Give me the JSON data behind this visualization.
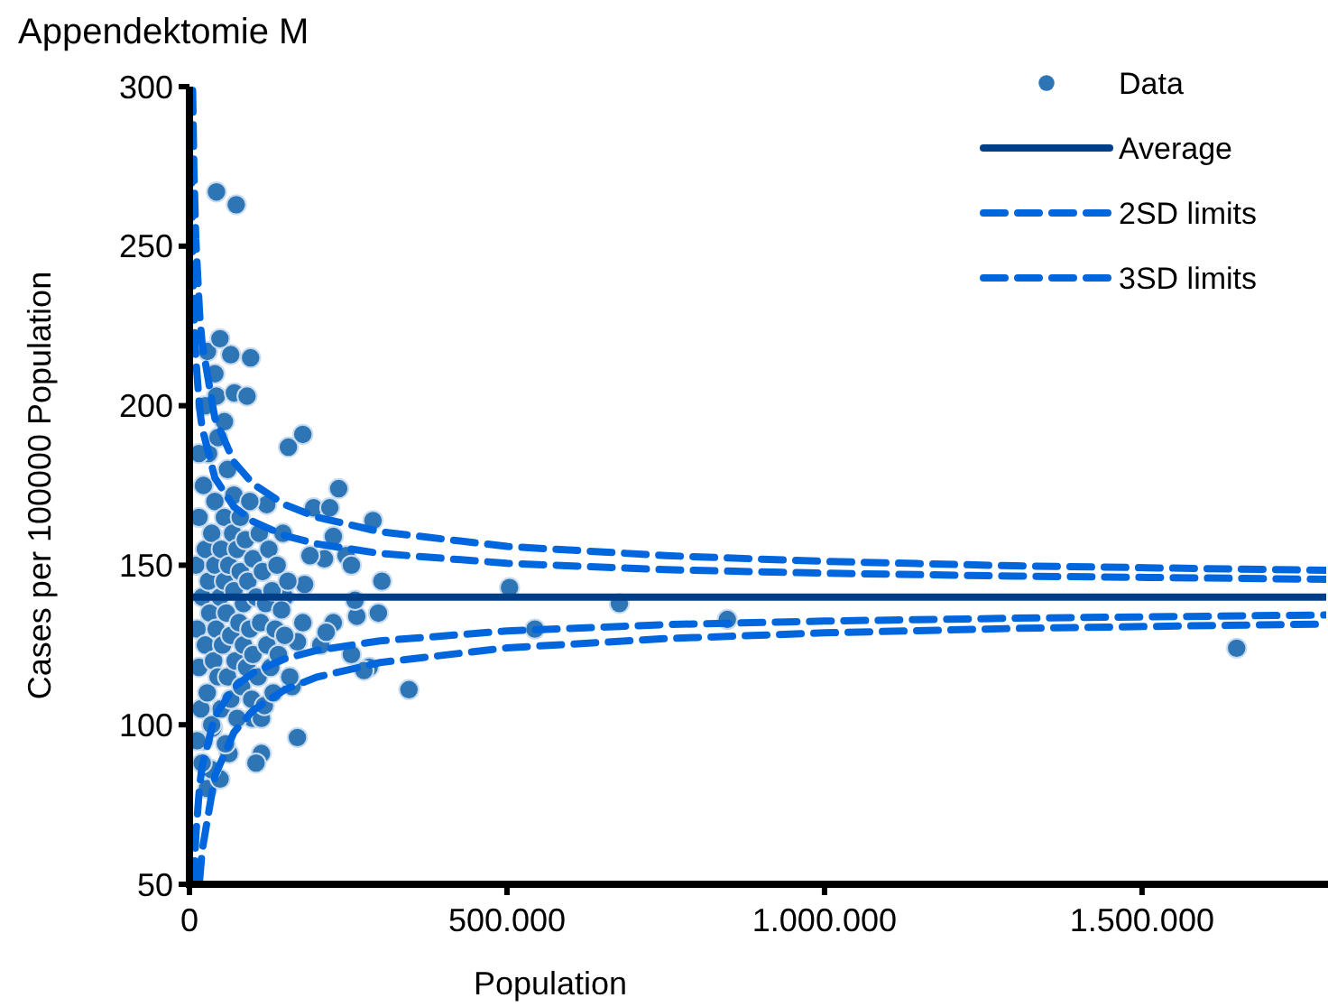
{
  "chart_data": {
    "type": "scatter",
    "title": "Appendektomie M",
    "xlabel": "Population",
    "ylabel": "Cases per 100000 Population",
    "xlim": [
      0,
      1790000
    ],
    "xticks": [
      {
        "value": 0,
        "label": "0"
      },
      {
        "value": 500000,
        "label": "500.000"
      },
      {
        "value": 1000000,
        "label": "1.000.000"
      },
      {
        "value": 1500000,
        "label": "1.500.000"
      }
    ],
    "ylim": [
      50,
      300
    ],
    "yticks": [
      50,
      100,
      150,
      200,
      250,
      300
    ],
    "legend": "top right",
    "series": [
      {
        "name": "Data",
        "marker": "circle",
        "color": "#2e75b6",
        "x": [
          42500,
          73700,
          28300,
          65000,
          96300,
          48000,
          42500,
          70800,
          90700,
          178500,
          155800,
          235000,
          195500,
          221000,
          289000,
          226600,
          246500,
          212500,
          255000,
          303000,
          181300,
          504000,
          544000,
          677000,
          847000,
          1649000,
          345600,
          170000,
          113300,
          104800,
          283000,
          274800,
          255000,
          297500,
          263500,
          260700,
          226600,
          206800,
          215300,
          28300,
          48200,
          34000,
          62300,
          22700,
          56700,
          36800,
          99200,
          113300,
          161500,
          170000,
          178500,
          150000,
          189800,
          147300,
          121700,
          10000,
          12000,
          15000,
          15000,
          18000,
          20000,
          22000,
          25000,
          25000,
          28000,
          30000,
          30000,
          32000,
          35000,
          35000,
          38000,
          40000,
          40000,
          42000,
          45000,
          45000,
          48000,
          50000,
          50000,
          52000,
          55000,
          55000,
          58000,
          60000,
          60000,
          62000,
          65000,
          65000,
          68000,
          70000,
          70000,
          72000,
          75000,
          75000,
          78000,
          80000,
          80000,
          82000,
          85000,
          85000,
          88000,
          90000,
          92000,
          95000,
          95000,
          98000,
          100000,
          100000,
          105000,
          108000,
          110000,
          112000,
          115000,
          118000,
          120000,
          122000,
          125000,
          128000,
          130000,
          132000,
          135000,
          138000,
          140000,
          145000,
          150000,
          155000,
          158000,
          12000,
          20000,
          25000,
          40000,
          55000,
          15000
        ],
        "values": [
          267,
          263,
          217,
          216,
          215,
          221,
          203,
          204,
          203,
          191,
          187,
          174,
          168,
          168,
          164,
          159,
          153,
          152,
          150,
          145,
          144,
          143,
          130,
          138,
          133,
          124,
          111,
          96,
          91,
          88,
          118,
          117,
          122,
          135,
          134,
          139,
          132,
          125,
          129,
          80,
          83,
          86,
          91,
          95,
          94,
          99,
          102,
          102,
          112,
          126,
          132,
          140,
          153,
          160,
          169,
          150,
          130,
          165,
          118,
          105,
          140,
          175,
          155,
          125,
          110,
          185,
          145,
          135,
          160,
          100,
          120,
          150,
          170,
          130,
          115,
          190,
          140,
          155,
          105,
          125,
          165,
          145,
          135,
          180,
          115,
          150,
          128,
          108,
          160,
          142,
          172,
          120,
          155,
          102,
          132,
          148,
          165,
          112,
          138,
          125,
          158,
          118,
          145,
          130,
          170,
          108,
          152,
          122,
          140,
          115,
          160,
          132,
          148,
          106,
          138,
          125,
          155,
          118,
          142,
          110,
          130,
          150,
          122,
          136,
          128,
          145,
          115,
          95,
          88,
          200,
          210,
          195,
          185
        ]
      },
      {
        "name": "Average",
        "type": "line",
        "line_style": "solid",
        "color": "#003f87",
        "x": [
          0,
          1790000
        ],
        "values": [
          140,
          140
        ]
      },
      {
        "name": "2SD limits",
        "type": "line",
        "line_style": "dashed",
        "color": "#0066dd",
        "x": [
          3000,
          5000,
          7000,
          10000,
          16000,
          20000,
          40000,
          70000,
          100000,
          150000,
          200000,
          300000,
          500000,
          750000,
          1000000,
          1300000,
          1790000
        ],
        "values": [
          276.6,
          245.8,
          229.4,
          214.8,
          199.2,
          192.9,
          177.4,
          168.3,
          163.7,
          159.3,
          156.7,
          153.7,
          150.6,
          148.6,
          147.5,
          146.6,
          145.6
        ]
      },
      {
        "type": "line",
        "line_style": "dashed",
        "color": "#0066dd",
        "x": [
          7000,
          10000,
          16000,
          20000,
          40000,
          70000,
          100000,
          150000,
          200000,
          300000,
          500000,
          750000,
          1000000,
          1300000,
          1790000
        ],
        "values": [
          50.6,
          65.2,
          80.8,
          87.1,
          102.6,
          111.7,
          116.3,
          120.7,
          123.3,
          126.3,
          129.4,
          131.4,
          132.5,
          133.4,
          134.4
        ]
      },
      {
        "name": "3SD limits",
        "type": "line",
        "line_style": "dashed",
        "color": "#0066dd",
        "x": [
          5000,
          7000,
          10000,
          16000,
          20000,
          40000,
          70000,
          100000,
          150000,
          200000,
          300000,
          500000,
          750000,
          1000000,
          1300000,
          1790000
        ],
        "values": [
          298.8,
          274.2,
          252.3,
          228.7,
          219.4,
          196.1,
          182.4,
          175.5,
          169.0,
          165.1,
          160.5,
          155.9,
          153.0,
          151.2,
          149.8,
          148.4
        ]
      },
      {
        "type": "line",
        "line_style": "dashed",
        "color": "#0066dd",
        "x": [
          16000,
          20000,
          40000,
          70000,
          100000,
          150000,
          200000,
          300000,
          500000,
          750000,
          1000000,
          1300000,
          1790000
        ],
        "values": [
          51.3,
          60.6,
          83.9,
          97.6,
          104.5,
          111.0,
          114.9,
          119.5,
          124.1,
          127.0,
          128.8,
          130.2,
          131.6
        ]
      }
    ]
  }
}
